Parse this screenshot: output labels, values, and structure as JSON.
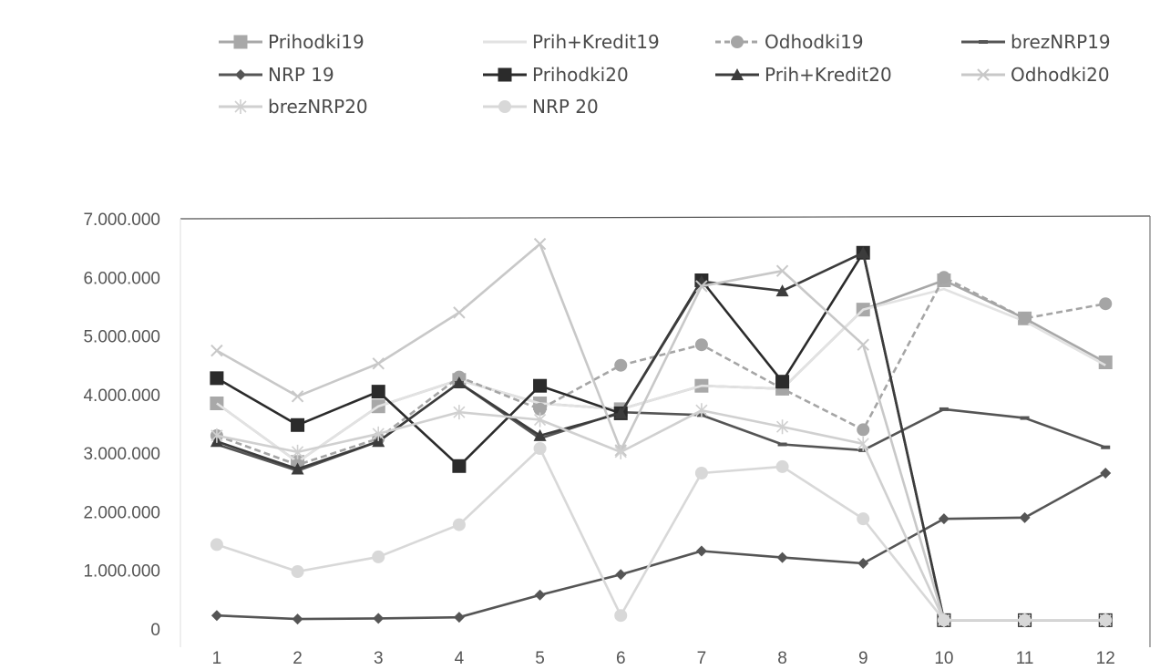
{
  "chart_data": {
    "type": "line",
    "title": "",
    "xlabel": "",
    "ylabel": "",
    "ylim": [
      0,
      7000000
    ],
    "yticks": [
      0,
      1000000,
      2000000,
      3000000,
      4000000,
      5000000,
      6000000,
      7000000
    ],
    "ytick_labels": [
      "0",
      "1.000.000",
      "2.000.000",
      "3.000.000",
      "4.000.000",
      "5.000.000",
      "6.000.000",
      "7.000.000"
    ],
    "categories": [
      "1",
      "2",
      "3",
      "4",
      "5",
      "6",
      "7",
      "8",
      "9",
      "10",
      "11",
      "12"
    ],
    "grid": false,
    "legend_position": "top",
    "series": [
      {
        "name": "Prihodki19",
        "color": "#a8a8a8",
        "marker": "square",
        "values": [
          3850000,
          2850000,
          3800000,
          4250000,
          3850000,
          3750000,
          4150000,
          4100000,
          5450000,
          5950000,
          5300000,
          4550000
        ]
      },
      {
        "name": "Prih+Kredit19",
        "color": "#e2e2e2",
        "marker": "none",
        "values": [
          3850000,
          2850000,
          3800000,
          4250000,
          3850000,
          3750000,
          4150000,
          4100000,
          5450000,
          5800000,
          5250000,
          4500000
        ]
      },
      {
        "name": "Odhodki19",
        "color": "#a5a5a5",
        "marker": "circle",
        "dashed": true,
        "values": [
          3300000,
          2800000,
          3250000,
          4300000,
          3750000,
          4500000,
          4850000,
          4100000,
          3400000,
          6000000,
          5300000,
          5550000
        ]
      },
      {
        "name": "brezNRP19",
        "color": "#555555",
        "marker": "dash",
        "values": [
          3150000,
          2700000,
          3200000,
          4200000,
          3250000,
          3700000,
          3650000,
          3150000,
          3050000,
          3750000,
          3600000,
          3100000
        ]
      },
      {
        "name": "NRP 19",
        "color": "#555555",
        "marker": "diamond",
        "values": [
          230000,
          170000,
          180000,
          200000,
          580000,
          930000,
          1330000,
          1220000,
          1120000,
          1880000,
          1900000,
          2660000
        ]
      },
      {
        "name": "Prihodki20",
        "color": "#2b2b2b",
        "marker": "square",
        "values": [
          4280000,
          3480000,
          4050000,
          2780000,
          4150000,
          3680000,
          5950000,
          4220000,
          6420000,
          150000,
          150000,
          150000
        ]
      },
      {
        "name": "Prih+Kredit20",
        "color": "#3c3c3c",
        "marker": "triangle",
        "values": [
          3200000,
          2730000,
          3200000,
          4200000,
          3300000,
          3680000,
          5930000,
          5770000,
          6420000,
          150000,
          150000,
          150000
        ]
      },
      {
        "name": "Odhodki20",
        "color": "#c8c8c8",
        "marker": "x",
        "values": [
          4750000,
          3970000,
          4530000,
          5400000,
          6570000,
          3050000,
          5850000,
          6110000,
          4850000,
          150000,
          150000,
          150000
        ]
      },
      {
        "name": "brezNRP20",
        "color": "#d0d0d0",
        "marker": "star",
        "values": [
          3300000,
          3020000,
          3330000,
          3700000,
          3570000,
          3020000,
          3730000,
          3450000,
          3160000,
          150000,
          150000,
          150000
        ]
      },
      {
        "name": "NRP 20",
        "color": "#d8d8d8",
        "marker": "circle",
        "values": [
          1440000,
          980000,
          1230000,
          1780000,
          3080000,
          230000,
          2660000,
          2770000,
          1880000,
          150000,
          150000,
          150000
        ]
      }
    ]
  }
}
